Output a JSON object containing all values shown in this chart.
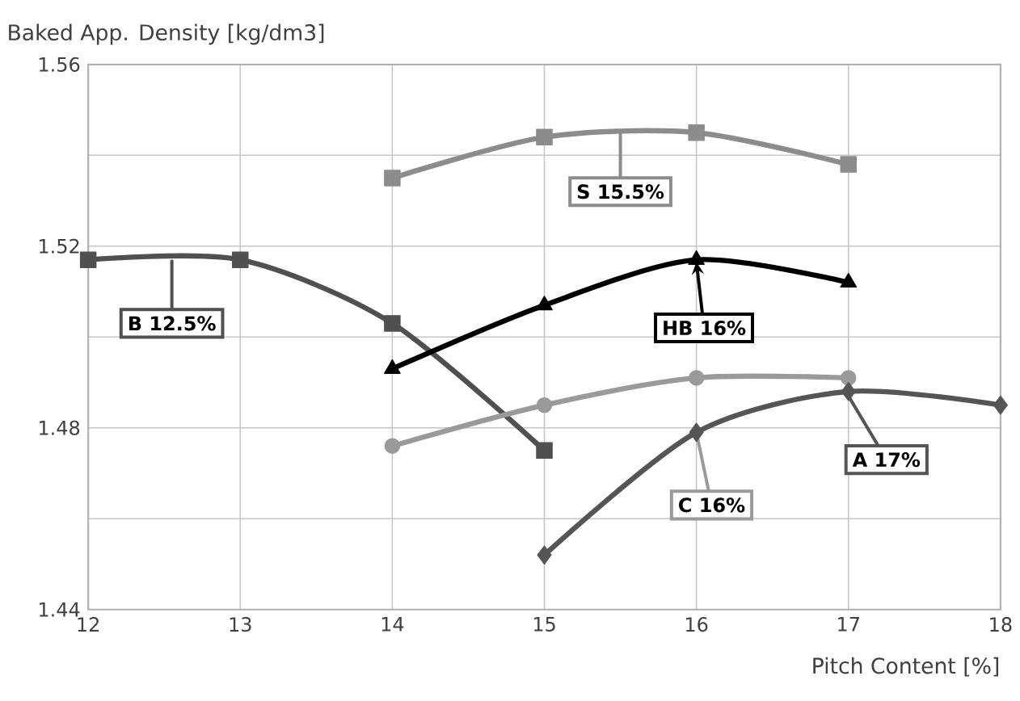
{
  "chart_data": {
    "type": "line",
    "xlabel": "Pitch Content [%]",
    "ylabel": "Baked App. Density [kg/dm3]",
    "xlim": [
      12,
      18
    ],
    "xticks": [
      12,
      13,
      14,
      15,
      16,
      17,
      18
    ],
    "ylim": [
      1.44,
      1.56
    ],
    "yticks": [
      1.44,
      {
        "value": 1.46,
        "label": null
      },
      1.48,
      {
        "value": 1.5,
        "label": null
      },
      1.52,
      {
        "value": 1.54,
        "label": null
      },
      1.56
    ],
    "grid": true,
    "series": [
      {
        "name": "B 12.5%",
        "color": "#505050",
        "marker": "square",
        "x": [
          12,
          13,
          14,
          15
        ],
        "values": [
          1.517,
          1.517,
          1.503,
          1.475
        ]
      },
      {
        "name": "S 15.5%",
        "color": "#8c8c8c",
        "marker": "square",
        "x": [
          14,
          15,
          16,
          17
        ],
        "values": [
          1.535,
          1.544,
          1.545,
          1.538
        ]
      },
      {
        "name": "HB 16%",
        "color": "#000000",
        "marker": "triangle",
        "x": [
          14,
          15,
          16,
          17
        ],
        "values": [
          1.493,
          1.507,
          1.517,
          1.512
        ]
      },
      {
        "name": "C 16%",
        "color": "#9a9a9a",
        "marker": "circle",
        "x": [
          14,
          15,
          16,
          17
        ],
        "values": [
          1.476,
          1.485,
          1.491,
          1.491
        ]
      },
      {
        "name": "A 17%",
        "color": "#555555",
        "marker": "diamond",
        "x": [
          15,
          16,
          17,
          18
        ],
        "values": [
          1.452,
          1.479,
          1.488,
          1.485
        ]
      }
    ]
  }
}
